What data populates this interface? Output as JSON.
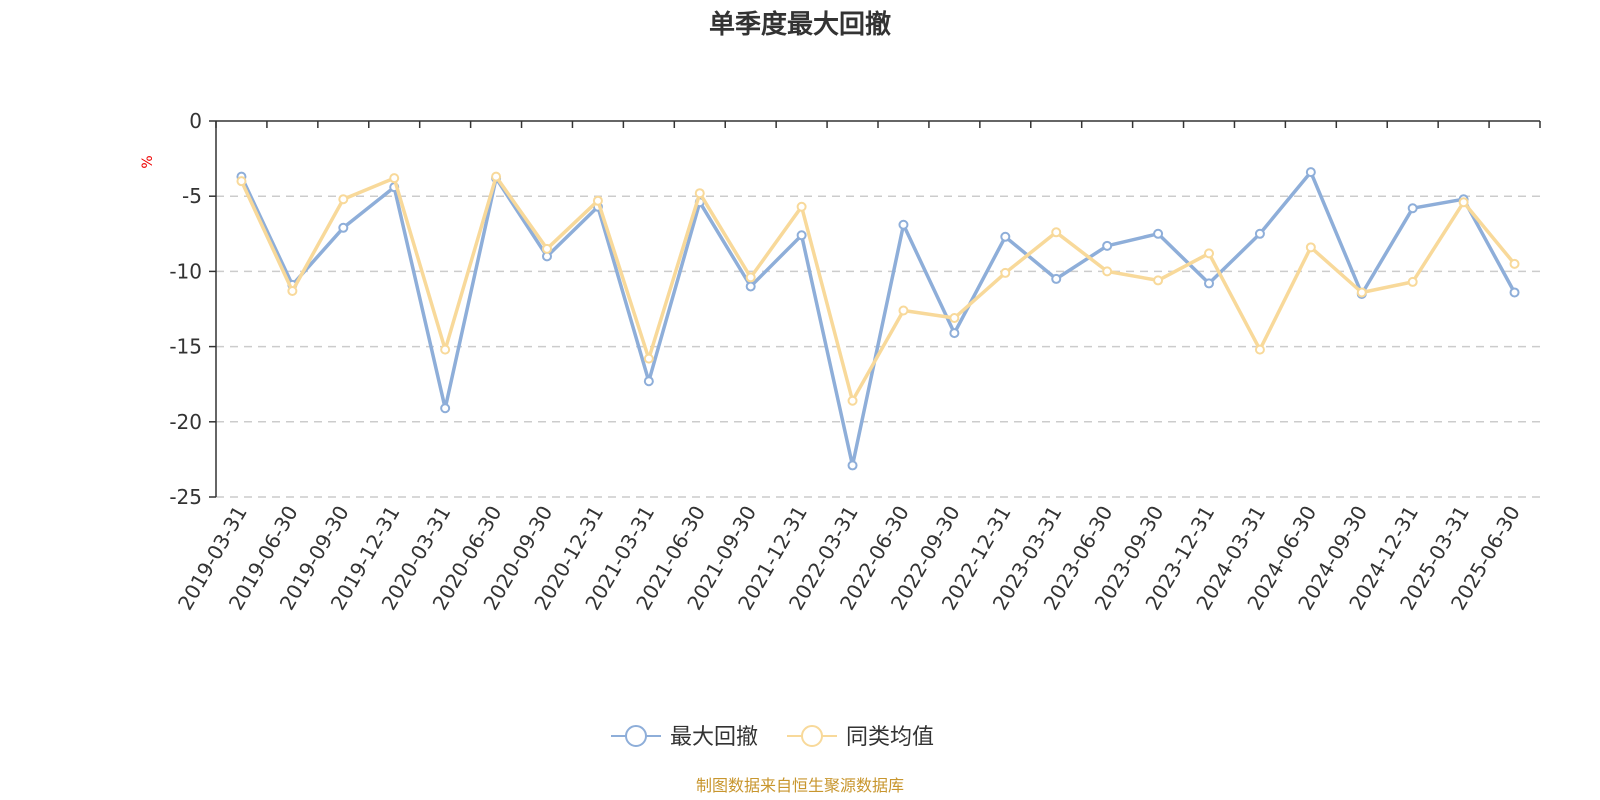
{
  "chart_data": {
    "type": "line",
    "title": "单季度最大回撤",
    "ylabel": "%",
    "ylim": [
      -25,
      0
    ],
    "yticks": [
      0,
      -5,
      -10,
      -15,
      -20,
      -25
    ],
    "grid": "horizontal dashed",
    "legend_position": "bottom-center",
    "categories": [
      "2019-03-31",
      "2019-06-30",
      "2019-09-30",
      "2019-12-31",
      "2020-03-31",
      "2020-06-30",
      "2020-09-30",
      "2020-12-31",
      "2021-03-31",
      "2021-06-30",
      "2021-09-30",
      "2021-12-31",
      "2022-03-31",
      "2022-06-30",
      "2022-09-30",
      "2022-12-31",
      "2023-03-31",
      "2023-06-30",
      "2023-09-30",
      "2023-12-31",
      "2024-03-31",
      "2024-06-30",
      "2024-09-30",
      "2024-12-31",
      "2025-03-31",
      "2025-06-30"
    ],
    "series": [
      {
        "name": "最大回撤",
        "color": "#8eaed9",
        "values": [
          -3.7,
          -10.9,
          -7.1,
          -4.4,
          -19.1,
          -3.8,
          -9.0,
          -5.7,
          -17.3,
          -5.4,
          -11.0,
          -7.6,
          -22.9,
          -6.9,
          -14.1,
          -7.7,
          -10.5,
          -8.3,
          -7.5,
          -10.8,
          -7.5,
          -3.4,
          -11.5,
          -5.8,
          -5.2,
          -11.4
        ]
      },
      {
        "name": "同类均值",
        "color": "#f8d99a",
        "values": [
          -4.0,
          -11.3,
          -5.2,
          -3.8,
          -15.2,
          -3.7,
          -8.5,
          -5.3,
          -15.8,
          -4.8,
          -10.4,
          -5.7,
          -18.6,
          -12.6,
          -13.1,
          -10.1,
          -7.4,
          -10.0,
          -10.6,
          -8.8,
          -15.2,
          -8.4,
          -11.4,
          -10.7,
          -5.4,
          -9.5
        ]
      }
    ]
  },
  "source_text": "制图数据来自恒生聚源数据库"
}
